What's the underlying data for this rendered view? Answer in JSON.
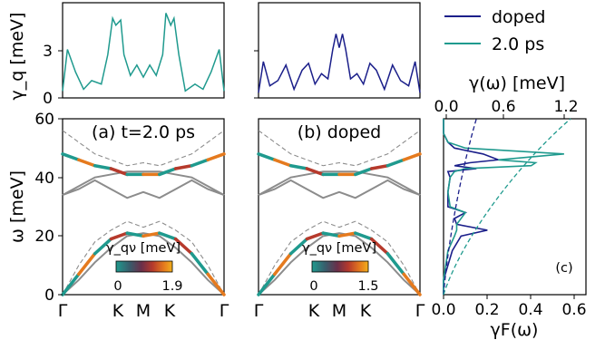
{
  "legend": {
    "entries": [
      {
        "label": "doped",
        "color": "#1b1f8a"
      },
      {
        "label": "2.0 ps",
        "color": "#1f9a8e"
      }
    ]
  },
  "colors": {
    "doped": "#1b1f8a",
    "ps2": "#1f9a8e",
    "gray": "#8c8c8c",
    "dash": "#8c8c8c",
    "cmap": [
      "#1f9a8e",
      "#3a5a6a",
      "#6a2f4a",
      "#b63a2c",
      "#e57a1e",
      "#f2b11e"
    ]
  },
  "panels": {
    "top_left": {
      "ylabel": "γ_q [meV]",
      "yticks": [
        "0",
        "3"
      ]
    },
    "top_mid": {},
    "a": {
      "title": "(a) t=2.0 ps",
      "ylabel": "ω [meV]",
      "yticks": [
        "0",
        "20",
        "40",
        "60"
      ],
      "xticks": [
        "Γ",
        "K",
        "M",
        "K",
        "Γ"
      ],
      "colorbar": {
        "label": "γ_qν [meV]",
        "min": "0",
        "max": "1.9"
      }
    },
    "b": {
      "title": "(b) doped",
      "xticks": [
        "Γ",
        "K",
        "M",
        "K",
        "Γ"
      ],
      "colorbar": {
        "label": "γ_qν [meV]",
        "min": "0",
        "max": "1.5"
      }
    },
    "c": {
      "tag": "(c)",
      "top_label": "γ(ω) [meV]",
      "top_ticks": [
        "0.0",
        "0.6",
        "1.2"
      ],
      "bottom_label": "γF(ω)",
      "bottom_ticks": [
        "0.0",
        "0.2",
        "0.4",
        "0.6"
      ]
    }
  },
  "chart_data": [
    {
      "type": "line",
      "title": "",
      "ylabel": "γq [meV]",
      "ylim": [
        0,
        5.5
      ],
      "x": [
        0,
        0.03,
        0.08,
        0.13,
        0.18,
        0.24,
        0.28,
        0.31,
        0.33,
        0.36,
        0.38,
        0.42,
        0.46,
        0.5,
        0.54,
        0.58,
        0.62,
        0.64,
        0.67,
        0.69,
        0.72,
        0.76,
        0.82,
        0.87,
        0.92,
        0.97,
        1.0
      ],
      "series": [
        {
          "name": "2.0 ps",
          "values": [
            0.4,
            2.8,
            1.5,
            0.5,
            1.0,
            0.8,
            2.5,
            4.6,
            4.2,
            4.5,
            2.5,
            1.3,
            1.9,
            1.2,
            1.9,
            1.3,
            2.5,
            4.9,
            4.2,
            4.6,
            2.5,
            0.4,
            0.8,
            0.5,
            1.5,
            2.8,
            0.4
          ]
        }
      ]
    },
    {
      "type": "line",
      "title": "",
      "ylim": [
        0,
        5.5
      ],
      "x": [
        0,
        0.03,
        0.07,
        0.12,
        0.17,
        0.22,
        0.27,
        0.31,
        0.35,
        0.39,
        0.43,
        0.46,
        0.48,
        0.5,
        0.52,
        0.54,
        0.57,
        0.61,
        0.65,
        0.69,
        0.73,
        0.78,
        0.83,
        0.88,
        0.93,
        0.97,
        1.0
      ],
      "series": [
        {
          "name": "doped",
          "values": [
            0.3,
            2.1,
            0.7,
            1.0,
            1.9,
            0.5,
            1.6,
            2.0,
            0.8,
            1.4,
            1.1,
            2.8,
            3.7,
            2.9,
            3.7,
            2.8,
            1.1,
            1.4,
            0.8,
            2.0,
            1.6,
            0.5,
            1.9,
            1.0,
            0.7,
            2.1,
            0.3
          ]
        }
      ]
    },
    {
      "type": "line",
      "title": "(a) t=2.0 ps",
      "ylabel": "ω [meV]",
      "ylim": [
        0,
        60
      ],
      "xticks": [
        "Γ",
        "K",
        "M",
        "K",
        "Γ"
      ],
      "x": [
        0,
        0.1,
        0.2,
        0.3,
        0.4,
        0.5,
        0.6,
        0.7,
        0.8,
        0.9,
        1.0
      ],
      "series": [
        {
          "values": [
            0,
            7,
            14,
            19,
            21,
            20,
            21,
            19,
            14,
            7,
            0
          ]
        },
        {
          "values": [
            0,
            5,
            11,
            16,
            20,
            21,
            20,
            16,
            11,
            5,
            0
          ]
        },
        {
          "values": [
            0,
            10,
            18,
            22,
            25,
            23,
            25,
            22,
            18,
            10,
            0
          ]
        },
        {
          "values": [
            34,
            37,
            40,
            41,
            42,
            42,
            42,
            41,
            40,
            37,
            34
          ]
        },
        {
          "values": [
            48,
            46,
            44,
            43,
            41,
            41,
            41,
            43,
            44,
            46,
            48
          ]
        },
        {
          "values": [
            56,
            52,
            48,
            46,
            44,
            45,
            44,
            46,
            48,
            52,
            56
          ]
        },
        {
          "values": [
            34,
            36,
            39,
            36,
            33,
            35,
            33,
            36,
            39,
            36,
            34
          ]
        }
      ]
    },
    {
      "type": "line",
      "title": "(b) doped",
      "ylim": [
        0,
        60
      ],
      "xticks": [
        "Γ",
        "K",
        "M",
        "K",
        "Γ"
      ],
      "x": [
        0,
        0.1,
        0.2,
        0.3,
        0.4,
        0.5,
        0.6,
        0.7,
        0.8,
        0.9,
        1.0
      ],
      "series": [
        {
          "values": [
            0,
            7,
            14,
            19,
            21,
            20,
            21,
            19,
            14,
            7,
            0
          ]
        },
        {
          "values": [
            0,
            5,
            11,
            16,
            20,
            21,
            20,
            16,
            11,
            5,
            0
          ]
        },
        {
          "values": [
            0,
            10,
            18,
            22,
            25,
            23,
            25,
            22,
            18,
            10,
            0
          ]
        },
        {
          "values": [
            34,
            37,
            40,
            41,
            42,
            42,
            42,
            41,
            40,
            37,
            34
          ]
        },
        {
          "values": [
            48,
            46,
            44,
            43,
            41,
            41,
            41,
            43,
            44,
            46,
            48
          ]
        },
        {
          "values": [
            56,
            52,
            48,
            46,
            44,
            45,
            44,
            46,
            48,
            52,
            56
          ]
        },
        {
          "values": [
            34,
            36,
            39,
            36,
            33,
            35,
            33,
            36,
            39,
            36,
            34
          ]
        }
      ]
    },
    {
      "type": "line",
      "title": "",
      "xlabel": "γF(ω)",
      "xlim": [
        0,
        0.65
      ],
      "ylim": [
        0,
        60
      ],
      "series": [
        {
          "name": "doped",
          "y": [
            0,
            5,
            10,
            15,
            20,
            22,
            24,
            26,
            28,
            30,
            35,
            40,
            42,
            43,
            44,
            45,
            46,
            48,
            50,
            52,
            55,
            60
          ],
          "values": [
            0.0,
            0.0,
            0.02,
            0.04,
            0.08,
            0.2,
            0.06,
            0.05,
            0.1,
            0.02,
            0.02,
            0.03,
            0.02,
            0.15,
            0.05,
            0.12,
            0.25,
            0.18,
            0.05,
            0.02,
            0.0,
            0.0
          ]
        },
        {
          "name": "2.0 ps",
          "y": [
            0,
            5,
            10,
            15,
            20,
            22,
            24,
            26,
            28,
            30,
            35,
            40,
            42,
            43,
            44,
            45,
            46,
            48,
            50,
            52,
            55,
            60
          ],
          "values": [
            0.0,
            0.0,
            0.01,
            0.02,
            0.05,
            0.06,
            0.06,
            0.08,
            0.1,
            0.03,
            0.02,
            0.03,
            0.05,
            0.1,
            0.4,
            0.42,
            0.25,
            0.55,
            0.1,
            0.02,
            0.0,
            0.0
          ]
        }
      ]
    }
  ]
}
